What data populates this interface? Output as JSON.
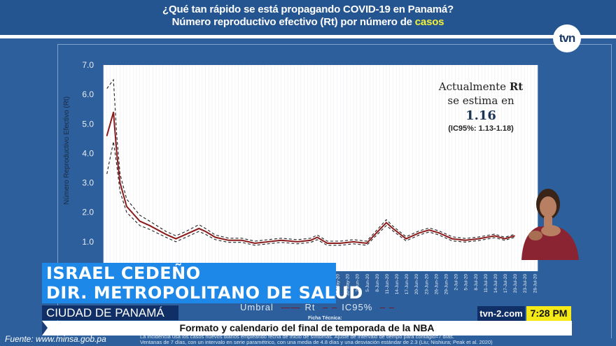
{
  "header": {
    "title_line1": "¿Qué tan rápido se está propagando COVID-19  en Panamá?",
    "title_line2_prefix": "Número reproductivo efectivo (Rt) por número de ",
    "title_line2_highlight": "casos"
  },
  "logo": "tvn",
  "estimate": {
    "line1_prefix": "Actualmente ",
    "line1_bold": "Rt",
    "line2": "se estima en",
    "value": "1.16",
    "ci": "(IC95%: 1.13-1.18)"
  },
  "lower_third": {
    "name": "ISRAEL CEDEÑO",
    "title": "DIR. METROPOLITANO DE SALUD",
    "location": "CIUDAD DE PANAMÁ"
  },
  "ticker": {
    "headline": "Formato y calendario del final de temporada de la NBA",
    "site": "tvn-2.com",
    "time": "7:28 PM"
  },
  "footnote": {
    "ficha": "Ficha Técnica:",
    "line1": "La incidencia usa los casos nuevos diarios empleando fecha de inicio de síntomas. Ajuste de intervalo de tiempo para contagio=7 días.",
    "line2": "Ventanas de 7 días, con un intervalo en serie paramétrico, con una media de 4.8 días y una desviación estándar de 2.3 (Liu; Nishiura; Peak et al. 2020)"
  },
  "source": "Fuente: www.minsa.gob.pa",
  "colors": {
    "background": "#2c5f9b",
    "rt_line": "#8b1a1a",
    "highlight": "#f4f13a",
    "name_box": "#1e88e8",
    "time_box": "#f5ea17"
  },
  "chart_data": {
    "type": "line",
    "ylabel": "Número Reproductivo Efectivo (Rt)",
    "ylim": [
      0,
      7
    ],
    "yticks": [
      "1.0",
      "2.0",
      "3.0",
      "4.0",
      "5.0",
      "6.0",
      "7.0"
    ],
    "xlim": [
      "2020-03-17",
      "2020-07-27"
    ],
    "xticks": [
      "27-May-20",
      "30-May-20",
      "2-Jun-20",
      "5-Jun-20",
      "8-Jun-20",
      "11-Jun-20",
      "14-Jun-20",
      "17-Jun-20",
      "20-Jun-20",
      "23-Jun-20",
      "26-Jun-20",
      "29-Jun-20",
      "2-Jul-20",
      "5-Jul-20",
      "8-Jul-20",
      "11-Jul-20",
      "14-Jul-20",
      "17-Jul-20",
      "20-Jul-20",
      "23-Jul-20",
      "26-Jul-20"
    ],
    "xtick_dates": [
      "2020-05-27",
      "2020-05-30",
      "2020-06-02",
      "2020-06-05",
      "2020-06-08",
      "2020-06-11",
      "2020-06-14",
      "2020-06-17",
      "2020-06-20",
      "2020-06-23",
      "2020-06-26",
      "2020-06-29",
      "2020-07-02",
      "2020-07-05",
      "2020-07-08",
      "2020-07-11",
      "2020-07-14",
      "2020-07-17",
      "2020-07-20",
      "2020-07-23",
      "2020-07-26"
    ],
    "grid": "vertical",
    "legend": {
      "position": "bottom",
      "entries": [
        "Umbral",
        "Rt",
        "IC95%"
      ]
    },
    "x": [
      "2020-03-18",
      "2020-03-20",
      "2020-03-21",
      "2020-03-22",
      "2020-03-24",
      "2020-03-28",
      "2020-03-31",
      "2020-04-05",
      "2020-04-08",
      "2020-04-11",
      "2020-04-15",
      "2020-04-17",
      "2020-04-20",
      "2020-04-24",
      "2020-04-28",
      "2020-05-02",
      "2020-05-06",
      "2020-05-10",
      "2020-05-15",
      "2020-05-19",
      "2020-05-21",
      "2020-05-24",
      "2020-05-28",
      "2020-06-01",
      "2020-06-05",
      "2020-06-08",
      "2020-06-11",
      "2020-06-13",
      "2020-06-17",
      "2020-06-21",
      "2020-06-24",
      "2020-06-27",
      "2020-07-01",
      "2020-07-05",
      "2020-07-09",
      "2020-07-14",
      "2020-07-17",
      "2020-07-20"
    ],
    "series": [
      {
        "name": "Rt",
        "values": [
          4.6,
          5.4,
          4.0,
          3.0,
          2.2,
          1.7,
          1.55,
          1.25,
          1.1,
          1.25,
          1.45,
          1.35,
          1.15,
          1.05,
          1.05,
          0.95,
          1.0,
          1.05,
          1.0,
          1.05,
          1.15,
          0.95,
          0.95,
          1.0,
          0.95,
          1.3,
          1.65,
          1.45,
          1.1,
          1.3,
          1.4,
          1.3,
          1.1,
          1.05,
          1.1,
          1.2,
          1.1,
          1.2
        ]
      },
      {
        "name": "IC95% lower",
        "values": [
          3.3,
          4.4,
          3.6,
          2.7,
          2.0,
          1.55,
          1.42,
          1.15,
          1.0,
          1.15,
          1.35,
          1.25,
          1.07,
          0.98,
          0.98,
          0.88,
          0.93,
          0.98,
          0.93,
          0.98,
          1.07,
          0.88,
          0.88,
          0.93,
          0.88,
          1.22,
          1.55,
          1.37,
          1.03,
          1.23,
          1.33,
          1.23,
          1.03,
          0.99,
          1.04,
          1.14,
          1.05,
          1.15
        ]
      },
      {
        "name": "IC95% upper",
        "values": [
          6.2,
          6.5,
          4.6,
          3.3,
          2.45,
          1.9,
          1.7,
          1.35,
          1.2,
          1.35,
          1.58,
          1.45,
          1.23,
          1.12,
          1.12,
          1.02,
          1.07,
          1.12,
          1.07,
          1.12,
          1.23,
          1.02,
          1.02,
          1.07,
          1.02,
          1.38,
          1.75,
          1.53,
          1.17,
          1.37,
          1.47,
          1.37,
          1.17,
          1.11,
          1.16,
          1.26,
          1.15,
          1.25
        ]
      }
    ]
  }
}
